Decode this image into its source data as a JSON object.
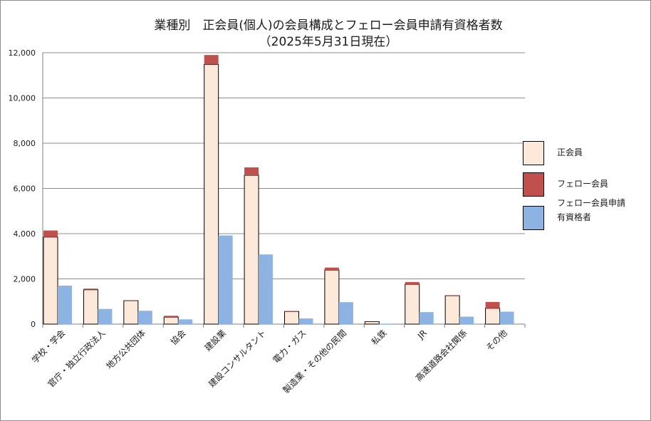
{
  "chart_data": {
    "type": "bar",
    "title": "業種別　正会員(個人)の会員構成とフェロー会員申請有資格者数",
    "subtitle": "（2025年5月31日現在）",
    "categories": [
      "学校・学会",
      "官庁・独立行政法人",
      "地方公共団体",
      "協会",
      "建設業",
      "建設コンサルタント",
      "電力・ガス",
      "製造業・その他の民間",
      "私鉄",
      "JR",
      "高速道路会社関係",
      "その他"
    ],
    "series": [
      {
        "name": "正会員",
        "stack": "members",
        "color": "#fde9d9",
        "values": [
          3850,
          1520,
          1040,
          310,
          11480,
          6580,
          560,
          2390,
          110,
          1760,
          1260,
          700
        ]
      },
      {
        "name": "フェロー会員",
        "stack": "members",
        "color": "#c0504d",
        "values": [
          290,
          50,
          10,
          60,
          420,
          350,
          20,
          110,
          10,
          100,
          10,
          280
        ]
      },
      {
        "name": "フェロー会員申請有資格者",
        "stack": "eligible",
        "color": "#8db3e2",
        "values": [
          1700,
          670,
          590,
          210,
          3920,
          3080,
          250,
          970,
          20,
          530,
          330,
          550
        ]
      }
    ],
    "yticks": [
      "0",
      "2,000",
      "4,000",
      "6,000",
      "8,000",
      "10,000",
      "12,000"
    ],
    "ylim": [
      0,
      12000
    ],
    "xlabel": "",
    "ylabel": "",
    "grid": true,
    "legend_position": "right"
  },
  "legend": [
    {
      "label_lines": [
        "正会員"
      ],
      "color": "#fde9d9"
    },
    {
      "label_lines": [
        "フェロー会員"
      ],
      "color": "#c0504d"
    },
    {
      "label_lines": [
        "フェロー会員申請",
        "有資格者"
      ],
      "color": "#8db3e2"
    }
  ]
}
